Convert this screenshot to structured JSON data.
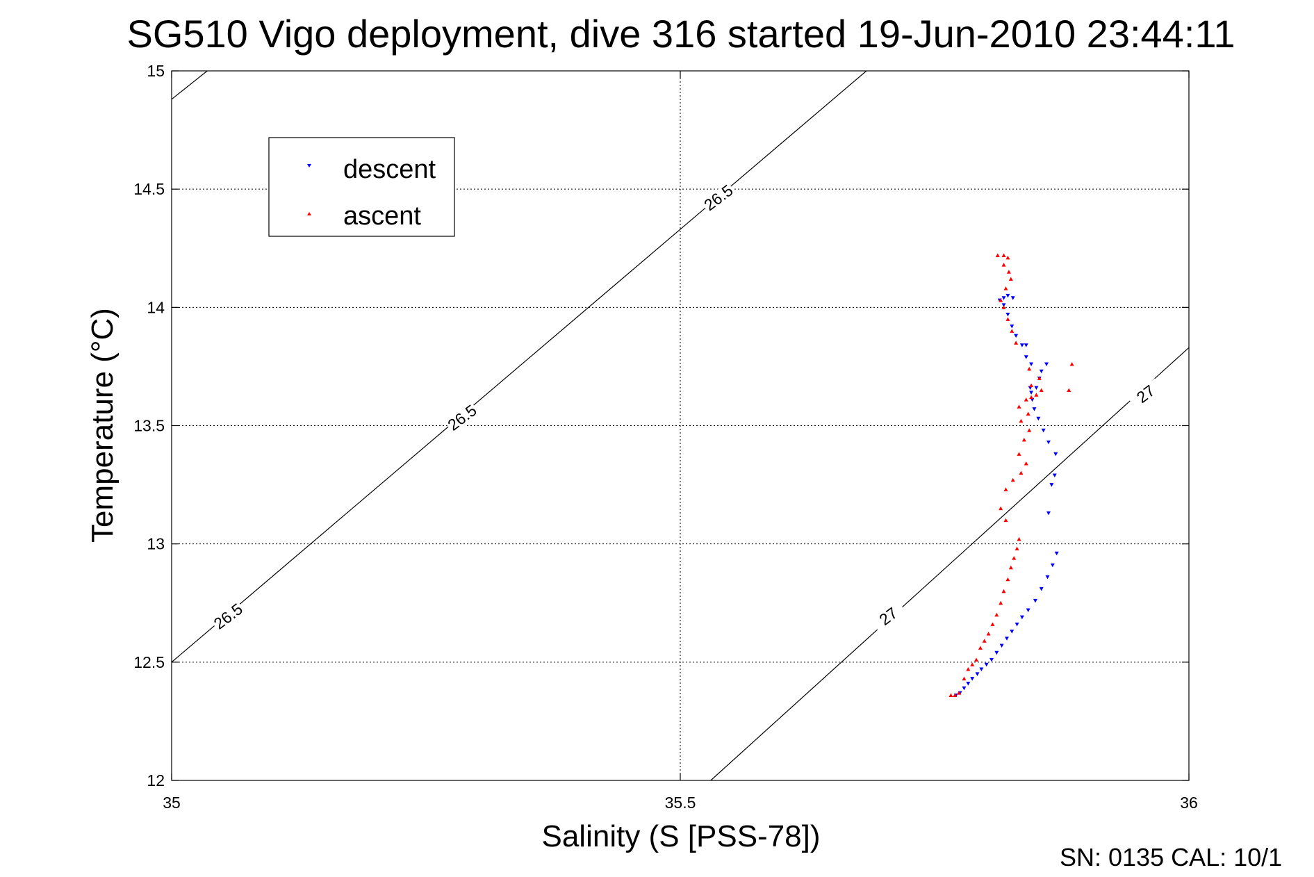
{
  "chart_data": {
    "type": "scatter",
    "title": "SG510 Vigo deployment, dive 316 started 19-Jun-2010 23:44:11",
    "xlabel": "Salinity (S [PSS-78])",
    "ylabel": "Temperature (°C)",
    "xlim": [
      35,
      36
    ],
    "ylim": [
      12,
      15
    ],
    "xticks": [
      35,
      35.5,
      36
    ],
    "xtick_labels": [
      "35",
      "35.5",
      "36"
    ],
    "yticks": [
      12,
      12.5,
      13,
      13.5,
      14,
      14.5,
      15
    ],
    "ytick_labels": [
      "12",
      "12.5",
      "13",
      "13.5",
      "14",
      "14.5",
      "15"
    ],
    "grid": true,
    "legend_position": "top-left",
    "colors": {
      "descent": "#0000ff",
      "ascent": "#ff0000"
    },
    "density_contours": [
      {
        "label": "26.5",
        "points": [
          [
            35.0,
            14.88
          ],
          [
            35.035,
            15.0
          ]
        ],
        "labels_at": []
      },
      {
        "label": "26.5",
        "points": [
          [
            35.0,
            12.5
          ],
          [
            35.683,
            15.0
          ]
        ],
        "label_positions": [
          [
            35.058,
            12.68,
            -37
          ],
          [
            35.288,
            13.52,
            -37
          ],
          [
            35.54,
            14.45,
            -37
          ]
        ]
      },
      {
        "label": "27",
        "points": [
          [
            35.53,
            12.0
          ],
          [
            36.0,
            13.83
          ]
        ],
        "label_positions": [
          [
            35.707,
            12.68,
            -37
          ],
          [
            35.96,
            13.62,
            -37
          ]
        ]
      }
    ],
    "series": [
      {
        "name": "descent",
        "marker": "triangle-down",
        "color": "#0000ff",
        "points": [
          [
            35.771,
            12.36
          ],
          [
            35.775,
            12.37
          ],
          [
            35.779,
            12.39
          ],
          [
            35.783,
            12.41
          ],
          [
            35.787,
            12.43
          ],
          [
            35.792,
            12.45
          ],
          [
            35.796,
            12.47
          ],
          [
            35.801,
            12.49
          ],
          [
            35.806,
            12.51
          ],
          [
            35.811,
            12.54
          ],
          [
            35.816,
            12.57
          ],
          [
            35.821,
            12.6
          ],
          [
            35.826,
            12.63
          ],
          [
            35.831,
            12.66
          ],
          [
            35.836,
            12.69
          ],
          [
            35.842,
            12.72
          ],
          [
            35.849,
            12.76
          ],
          [
            35.855,
            12.81
          ],
          [
            35.861,
            12.86
          ],
          [
            35.866,
            12.91
          ],
          [
            35.87,
            12.96
          ],
          [
            35.862,
            13.13
          ],
          [
            35.865,
            13.25
          ],
          [
            35.868,
            13.29
          ],
          [
            35.869,
            13.38
          ],
          [
            35.862,
            13.43
          ],
          [
            35.857,
            13.48
          ],
          [
            35.852,
            13.53
          ],
          [
            35.848,
            13.57
          ],
          [
            35.846,
            13.61
          ],
          [
            35.845,
            13.64
          ],
          [
            35.844,
            13.66
          ],
          [
            35.85,
            13.66
          ],
          [
            35.853,
            13.7
          ],
          [
            35.855,
            13.73
          ],
          [
            35.86,
            13.76
          ],
          [
            35.845,
            13.76
          ],
          [
            35.84,
            13.79
          ],
          [
            35.836,
            13.84
          ],
          [
            35.84,
            13.84
          ],
          [
            35.83,
            13.88
          ],
          [
            35.826,
            13.92
          ],
          [
            35.822,
            13.97
          ],
          [
            35.818,
            14.01
          ],
          [
            35.814,
            14.03
          ],
          [
            35.818,
            14.04
          ],
          [
            35.822,
            14.05
          ],
          [
            35.827,
            14.04
          ]
        ]
      },
      {
        "name": "ascent",
        "marker": "triangle-up",
        "color": "#ff0000",
        "points": [
          [
            35.766,
            12.36
          ],
          [
            35.77,
            12.36
          ],
          [
            35.774,
            12.37
          ],
          [
            35.779,
            12.43
          ],
          [
            35.783,
            12.47
          ],
          [
            35.787,
            12.49
          ],
          [
            35.791,
            12.51
          ],
          [
            35.795,
            12.56
          ],
          [
            35.799,
            12.59
          ],
          [
            35.803,
            12.62
          ],
          [
            35.807,
            12.66
          ],
          [
            35.811,
            12.7
          ],
          [
            35.815,
            12.75
          ],
          [
            35.818,
            12.8
          ],
          [
            35.822,
            12.85
          ],
          [
            35.825,
            12.9
          ],
          [
            35.828,
            12.94
          ],
          [
            35.831,
            12.98
          ],
          [
            35.833,
            13.02
          ],
          [
            35.82,
            13.1
          ],
          [
            35.815,
            13.15
          ],
          [
            35.82,
            13.23
          ],
          [
            35.827,
            13.27
          ],
          [
            35.835,
            13.3
          ],
          [
            35.84,
            13.34
          ],
          [
            35.833,
            13.38
          ],
          [
            35.838,
            13.44
          ],
          [
            35.843,
            13.48
          ],
          [
            35.835,
            13.52
          ],
          [
            35.842,
            13.55
          ],
          [
            35.833,
            13.58
          ],
          [
            35.84,
            13.61
          ],
          [
            35.845,
            13.62
          ],
          [
            35.85,
            13.63
          ],
          [
            35.855,
            13.65
          ],
          [
            35.845,
            13.67
          ],
          [
            35.853,
            13.7
          ],
          [
            35.843,
            13.74
          ],
          [
            35.882,
            13.65
          ],
          [
            35.885,
            13.76
          ],
          [
            35.83,
            13.85
          ],
          [
            35.826,
            13.9
          ],
          [
            35.822,
            13.95
          ],
          [
            35.818,
            14.0
          ],
          [
            35.815,
            14.03
          ],
          [
            35.82,
            14.08
          ],
          [
            35.825,
            14.12
          ],
          [
            35.823,
            14.15
          ],
          [
            35.818,
            14.18
          ],
          [
            35.812,
            14.22
          ],
          [
            35.818,
            14.22
          ],
          [
            35.822,
            14.21
          ]
        ]
      }
    ]
  },
  "legend": {
    "items": [
      {
        "label": "descent",
        "color": "#0000ff",
        "marker": "triangle-down"
      },
      {
        "label": "ascent",
        "color": "#ff0000",
        "marker": "triangle-up"
      }
    ]
  },
  "footer": {
    "text": "SN: 0135  CAL: 10/1"
  }
}
